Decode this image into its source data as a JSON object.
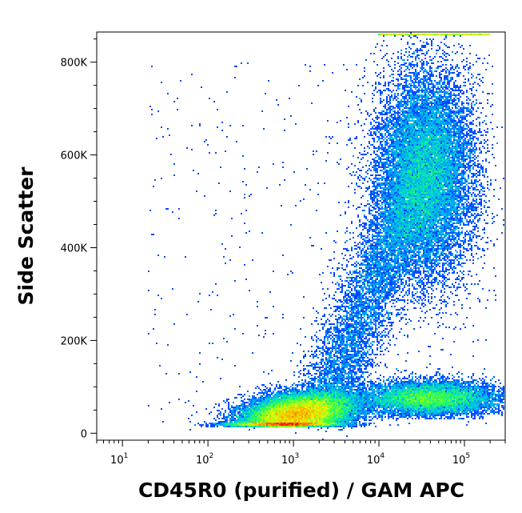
{
  "chart_data": {
    "type": "scatter",
    "subtype": "flow-cytometry-density-dot-plot",
    "xlabel": "CD45R0 (purified) / GAM APC",
    "ylabel": "Side Scatter",
    "x_scale": "log",
    "xlim": [
      5,
      300000
    ],
    "ylim": [
      -15000,
      865000
    ],
    "x_ticks": [
      {
        "value": 10,
        "base": "10",
        "exp": "1"
      },
      {
        "value": 100,
        "base": "10",
        "exp": "2"
      },
      {
        "value": 1000,
        "base": "10",
        "exp": "3"
      },
      {
        "value": 10000,
        "base": "10",
        "exp": "4"
      },
      {
        "value": 100000,
        "base": "10",
        "exp": "5"
      }
    ],
    "y_ticks": [
      {
        "value": 0,
        "label": "0"
      },
      {
        "value": 200000,
        "label": "200K"
      },
      {
        "value": 400000,
        "label": "400K"
      },
      {
        "value": 600000,
        "label": "600K"
      },
      {
        "value": 800000,
        "label": "800K"
      }
    ],
    "grid": false,
    "legend": "none",
    "color_scale": [
      "#0000ff",
      "#00a0ff",
      "#00e0c0",
      "#40ff40",
      "#e0ff00",
      "#ffa000",
      "#ff0000"
    ],
    "populations": [
      {
        "name": "low-SSC CD45R0-negative cluster",
        "x_center": 1100,
        "x_spread_log10": 0.32,
        "y_center": 40000,
        "y_spread": 22000,
        "peak_density": 1.0
      },
      {
        "name": "low-SSC CD45R0-positive cluster",
        "x_center": 40000,
        "x_spread_log10": 0.38,
        "y_center": 75000,
        "y_spread": 18000,
        "peak_density": 0.45
      },
      {
        "name": "high-SSC granulocyte cluster",
        "x_center": 35000,
        "x_spread_log10": 0.28,
        "y_center": 560000,
        "y_spread": 110000,
        "peak_density": 0.5
      }
    ]
  }
}
